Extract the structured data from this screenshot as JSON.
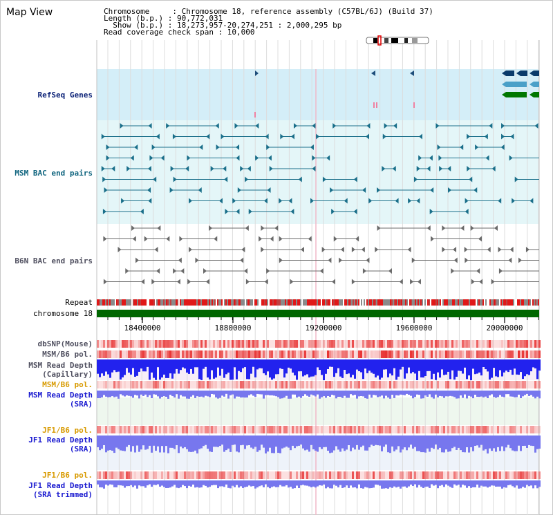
{
  "header": {
    "title": "Map View",
    "chromosome_line": "Chromosome     : Chromosome 18, reference assembly (C57BL/6J) (Build 37)",
    "length_line": "Length (b.p.) : 90,772,031",
    "show_line": "  Show (b.p.) : 18,273,957-20,274,251 : 2,000,295 bp",
    "coverage_line": "Read coverage check span : 10,000"
  },
  "tracks": {
    "refseq": "RefSeq Genes",
    "msm_bac": "MSM BAC end pairs",
    "b6n_bac": "B6N BAC end pairs",
    "repeat": "Repeat",
    "chromosome": "chromosome 18",
    "dbsnp": "dbSNP(Mouse)",
    "msm_b6_pol_1": "MSM/B6 pol.",
    "msm_depth_cap_1": "MSM Read Depth",
    "msm_depth_cap_2": "(Capillary)",
    "msm_b6_pol_2": "MSM/B6 pol.",
    "msm_depth_sra_1": "MSM Read Depth",
    "msm_depth_sra_2": "(SRA)",
    "jf1_b6_pol_1": "JF1/B6 pol.",
    "jf1_depth_sra_1": "JF1 Read Depth",
    "jf1_depth_sra_2": "(SRA)",
    "jf1_b6_pol_2": "JF1/B6 pol.",
    "jf1_depth_trim_1": "JF1 Read Depth",
    "jf1_depth_trim_2": "(SRA trimmed)"
  },
  "axis": {
    "ticks": [
      "18400000",
      "18800000",
      "19200000",
      "19600000",
      "20000000"
    ],
    "range_start": 18273957,
    "range_end": 20274251
  },
  "colors": {
    "refseq_bg": "#d4eef8",
    "bac_bg": "#e4f6f8",
    "chromosome_bar": "#006600",
    "msm_depth_bar": "#2222ee",
    "sra_depth_bar": "#7777ee",
    "pol_red": "#e83030",
    "title_navy": "#0c2277",
    "label_orange": "#d89a00"
  }
}
